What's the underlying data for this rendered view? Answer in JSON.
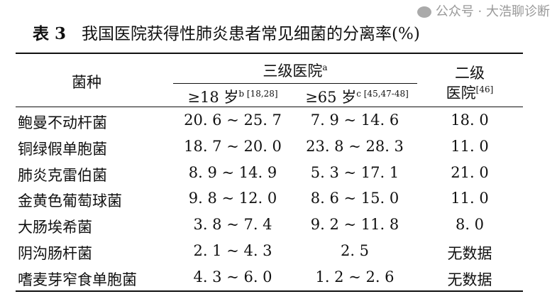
{
  "title": {
    "label": "表 3",
    "text": "我国医院获得性肺炎患者常见细菌的分离率(%)"
  },
  "header": {
    "species": "菌种",
    "tertiary": "三级医院",
    "tertiary_sup": "a",
    "adult": "≥18 岁",
    "adult_sup": "b [18,28]",
    "elderly": "≥65 岁",
    "elderly_sup": "c [45,47-48]",
    "secondary_line1": "二级",
    "secondary_line2": "医院",
    "secondary_sup": "[46]"
  },
  "rows": [
    {
      "name": "鲍曼不动杆菌",
      "adult": "20. 6 ~ 25. 7",
      "elderly": "7. 9 ~ 14. 6",
      "secondary": "18. 0"
    },
    {
      "name": "铜绿假单胞菌",
      "adult": "18. 7 ~ 20. 0",
      "elderly": "23. 8 ~ 28. 3",
      "secondary": "11. 0"
    },
    {
      "name": "肺炎克雷伯菌",
      "adult": "8. 9 ~ 14. 9",
      "elderly": "5. 3 ~ 17. 1",
      "secondary": "21. 0"
    },
    {
      "name": "金黄色葡萄球菌",
      "adult": "9. 8 ~ 12. 0",
      "elderly": "8. 6 ~ 15. 0",
      "secondary": "11. 0"
    },
    {
      "name": "大肠埃希菌",
      "adult": "3. 8 ~ 7. 4",
      "elderly": "9. 2 ~ 11. 8",
      "secondary": "8. 0"
    },
    {
      "name": "阴沟肠杆菌",
      "adult": "2. 1 ~ 4. 3",
      "elderly": "2. 5",
      "secondary": "无数据"
    },
    {
      "name": "嗜麦芽窄食单胞菌",
      "adult": "4. 3 ~ 6. 0",
      "elderly": "1. 2 ~ 2. 6",
      "secondary": "无数据"
    }
  ],
  "watermark": "公众号 · 大浩聊诊断"
}
